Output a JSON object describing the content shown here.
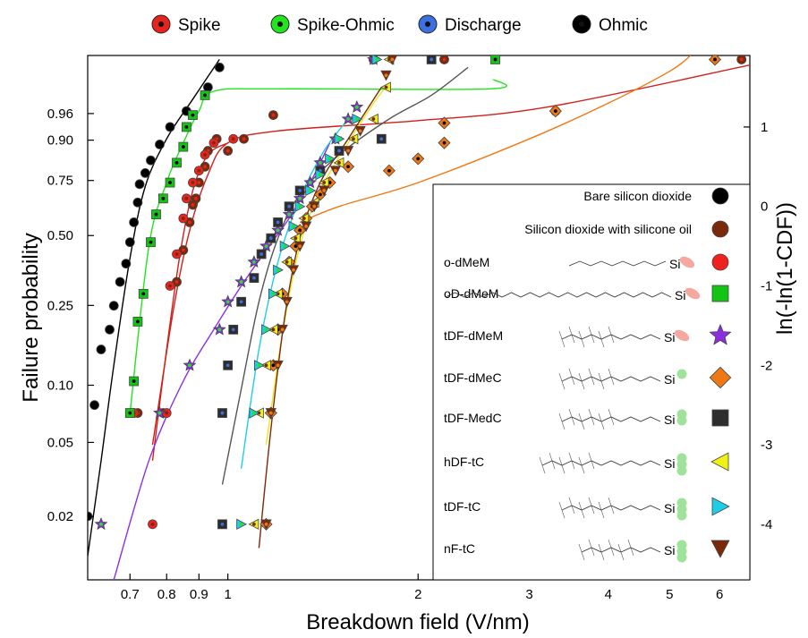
{
  "chart_data": {
    "type": "scatter",
    "xlabel": "Breakdown field (V/nm)",
    "ylabel": "Failure probability",
    "y2label": "ln(-ln(1-CDF))",
    "x_scale": "log",
    "x_ticks": [
      0.7,
      0.8,
      0.9,
      1,
      2,
      3,
      4,
      5,
      6
    ],
    "x_range": [
      0.6,
      6.7
    ],
    "y_range_weibull": [
      -4.7,
      1.9
    ],
    "y_ticks_prob": [
      "0.96",
      "0.90",
      "0.75",
      "0.50",
      "0.25",
      "0.10",
      "0.05",
      "0.02"
    ],
    "y_ticks_prob_values": [
      0.96,
      0.9,
      0.75,
      0.5,
      0.25,
      0.1,
      0.05,
      0.02
    ],
    "y2_ticks": [
      "1",
      "0",
      "-1",
      "-2",
      "-3",
      "-4"
    ],
    "y2_ticks_values": [
      1,
      0,
      -1,
      -2,
      -3,
      -4
    ],
    "top_legend": [
      {
        "label": "Spike",
        "color": "#e8231f"
      },
      {
        "label": "Spike-Ohmic",
        "color": "#22e51f"
      },
      {
        "label": "Discharge",
        "color": "#3c6fe0"
      },
      {
        "label": "Ohmic",
        "color": "#000000"
      }
    ],
    "inset_legend": [
      {
        "label": "Bare silicon dioxide",
        "marker": "circle",
        "color": "#000000",
        "molecule": false
      },
      {
        "label": "Silicon dioxide with silicone oil",
        "marker": "circle",
        "color": "#7a2a0a",
        "molecule": false
      },
      {
        "label": "o-dMeM",
        "marker": "circle",
        "color": "#f0201c",
        "molecule": true,
        "head": "methoxy",
        "chain": "alkyl8"
      },
      {
        "label": "oD-dMeM",
        "marker": "square",
        "color": "#14c414",
        "molecule": true,
        "head": "methoxy",
        "chain": "alkyl18"
      },
      {
        "label": "tDF-dMeM",
        "marker": "star",
        "color": "#8c2ee0",
        "molecule": true,
        "head": "methoxy",
        "chain": "fluoro"
      },
      {
        "label": "tDF-dMeC",
        "marker": "diamond",
        "color": "#f07814",
        "molecule": true,
        "head": "chloro1",
        "chain": "fluoro"
      },
      {
        "label": "tDF-MedC",
        "marker": "square",
        "color": "#2d2d2d",
        "molecule": true,
        "head": "chloro2",
        "chain": "fluoro"
      },
      {
        "label": "hDF-tC",
        "marker": "triangle-left",
        "color": "#f0f014",
        "molecule": true,
        "head": "chloro3",
        "chain": "fluoro-long"
      },
      {
        "label": "tDF-tC",
        "marker": "triangle-right",
        "color": "#1ecde6",
        "molecule": true,
        "head": "chloro3",
        "chain": "fluoro"
      },
      {
        "label": "nF-tC",
        "marker": "triangle-down",
        "color": "#7a2a0a",
        "molecule": true,
        "head": "chloro3",
        "chain": "fluoro-short"
      }
    ],
    "series": [
      {
        "name": "Bare silicon dioxide",
        "marker": "circle",
        "fill": "#000000",
        "center": null,
        "points": [
          [
            0.6,
            -3.9
          ],
          [
            0.615,
            -2.5
          ],
          [
            0.63,
            -1.8
          ],
          [
            0.65,
            -1.55
          ],
          [
            0.66,
            -1.25
          ],
          [
            0.675,
            -0.95
          ],
          [
            0.69,
            -0.72
          ],
          [
            0.7,
            -0.45
          ],
          [
            0.71,
            -0.2
          ],
          [
            0.72,
            0.05
          ],
          [
            0.725,
            0.28
          ],
          [
            0.74,
            0.42
          ],
          [
            0.755,
            0.58
          ],
          [
            0.78,
            0.78
          ],
          [
            0.81,
            1.0
          ],
          [
            0.86,
            1.2
          ],
          [
            0.93,
            1.5
          ],
          [
            0.97,
            1.75
          ]
        ],
        "fit": [
          [
            0.6,
            -4.4
          ],
          [
            0.63,
            -3.2
          ],
          [
            0.66,
            -2.0
          ],
          [
            0.7,
            -0.65
          ],
          [
            0.74,
            0.25
          ],
          [
            0.8,
            0.85
          ],
          [
            0.88,
            1.35
          ],
          [
            0.97,
            1.85
          ]
        ],
        "fit_color": "#000000"
      },
      {
        "name": "Silicon dioxide with silicone oil",
        "marker": "circle",
        "fill": "#7a2a0a",
        "center": "#e8231f",
        "points": [
          [
            0.72,
            -2.6
          ],
          [
            0.79,
            -2.6
          ],
          [
            0.83,
            -0.95
          ],
          [
            0.85,
            -0.55
          ],
          [
            0.87,
            -0.2
          ],
          [
            0.88,
            0.02
          ],
          [
            0.89,
            0.1
          ],
          [
            0.9,
            0.3
          ],
          [
            0.92,
            0.5
          ],
          [
            0.93,
            0.7
          ],
          [
            0.96,
            0.85
          ],
          [
            1.0,
            0.7
          ],
          [
            1.06,
            0.85
          ],
          [
            1.18,
            1.15
          ],
          [
            1.7,
            1.85
          ],
          [
            2.2,
            1.85
          ],
          [
            3.3,
            1.2
          ],
          [
            6.5,
            1.85
          ]
        ],
        "fit": [
          [
            0.76,
            -3.0
          ],
          [
            0.82,
            -1.3
          ],
          [
            0.87,
            -0.3
          ],
          [
            0.93,
            0.4
          ],
          [
            1.0,
            0.8
          ],
          [
            1.2,
            0.95
          ],
          [
            2.0,
            1.08
          ],
          [
            3.2,
            1.25
          ],
          [
            6.7,
            1.78
          ]
        ],
        "fit_color": "#d0201c"
      },
      {
        "name": "o-dMeM",
        "marker": "circle",
        "fill": "#f0201c",
        "center": "#7a2a0a",
        "points": [
          [
            0.71,
            -2.6
          ],
          [
            0.76,
            -4.0
          ],
          [
            0.8,
            -2.6
          ],
          [
            0.81,
            -1.0
          ],
          [
            0.83,
            -0.6
          ],
          [
            0.85,
            -0.15
          ],
          [
            0.86,
            0.1
          ],
          [
            0.88,
            0.3
          ],
          [
            0.9,
            0.45
          ],
          [
            0.92,
            0.65
          ],
          [
            0.95,
            0.8
          ],
          [
            1.02,
            0.85
          ]
        ],
        "fit": [
          [
            0.76,
            -3.2
          ],
          [
            0.8,
            -1.8
          ],
          [
            0.84,
            -0.6
          ],
          [
            0.88,
            0.2
          ],
          [
            0.93,
            0.65
          ],
          [
            1.0,
            0.8
          ]
        ],
        "fit_color": "#d0201c"
      },
      {
        "name": "oD-dMeM",
        "marker": "square",
        "fill": "#14c414",
        "center": "#000000",
        "points": [
          [
            0.7,
            -2.6
          ],
          [
            0.71,
            -2.2
          ],
          [
            0.72,
            -1.45
          ],
          [
            0.735,
            -1.1
          ],
          [
            0.755,
            -0.45
          ],
          [
            0.77,
            -0.1
          ],
          [
            0.79,
            0.1
          ],
          [
            0.81,
            0.3
          ],
          [
            0.83,
            0.55
          ],
          [
            0.85,
            0.75
          ],
          [
            0.86,
            1.0
          ],
          [
            0.88,
            1.15
          ],
          [
            0.92,
            1.4
          ],
          [
            2.65,
            1.85
          ]
        ],
        "fit": [
          [
            0.7,
            -2.6
          ],
          [
            0.75,
            -0.5
          ],
          [
            0.8,
            0.3
          ],
          [
            0.85,
            0.8
          ],
          [
            0.9,
            1.2
          ],
          [
            0.95,
            1.45
          ],
          [
            1.2,
            1.48
          ],
          [
            2.6,
            1.48
          ],
          [
            2.63,
            1.6
          ]
        ],
        "fit_color": "#22e51f"
      },
      {
        "name": "tDF-dMeM",
        "marker": "star",
        "fill": "#8c2ee0",
        "center": "#22e51f",
        "points": [
          [
            0.63,
            -4.0
          ],
          [
            0.78,
            -2.6
          ],
          [
            0.87,
            -2.0
          ],
          [
            0.97,
            -1.55
          ],
          [
            1.0,
            -1.2
          ],
          [
            1.05,
            -0.95
          ],
          [
            1.1,
            -0.7
          ],
          [
            1.15,
            -0.5
          ],
          [
            1.2,
            -0.3
          ],
          [
            1.25,
            -0.1
          ],
          [
            1.3,
            0.1
          ],
          [
            1.35,
            0.3
          ],
          [
            1.4,
            0.55
          ],
          [
            1.48,
            0.85
          ],
          [
            1.55,
            1.1
          ],
          [
            1.6,
            1.25
          ],
          [
            1.7,
            1.85
          ]
        ],
        "fit": [
          [
            0.66,
            -4.7
          ],
          [
            0.75,
            -3.2
          ],
          [
            0.85,
            -2.2
          ],
          [
            0.95,
            -1.55
          ],
          [
            1.05,
            -1.0
          ],
          [
            1.15,
            -0.55
          ],
          [
            1.25,
            -0.15
          ],
          [
            1.35,
            0.3
          ],
          [
            1.45,
            0.8
          ]
        ],
        "fit_color": "#8c2ee0"
      },
      {
        "name": "tDF-dMeC",
        "marker": "diamond",
        "fill": "#f07814",
        "center": "#000000",
        "points": [
          [
            1.15,
            -4.0
          ],
          [
            1.17,
            -2.6
          ],
          [
            1.18,
            -2.0
          ],
          [
            1.2,
            -1.55
          ],
          [
            1.22,
            -1.1
          ],
          [
            1.25,
            -0.7
          ],
          [
            1.28,
            -0.5
          ],
          [
            1.3,
            -0.3
          ],
          [
            1.33,
            -0.15
          ],
          [
            1.36,
            0.0
          ],
          [
            1.4,
            0.15
          ],
          [
            1.45,
            0.3
          ],
          [
            1.55,
            0.5
          ],
          [
            1.8,
            0.45
          ],
          [
            2.0,
            0.6
          ],
          [
            2.2,
            0.8
          ],
          [
            2.2,
            1.05
          ],
          [
            3.3,
            1.2
          ],
          [
            5.9,
            1.85
          ]
        ],
        "fit": [
          [
            1.3,
            -0.2
          ],
          [
            1.5,
            0.0
          ],
          [
            2.0,
            0.3
          ],
          [
            3.0,
            0.85
          ],
          [
            4.0,
            1.3
          ],
          [
            5.0,
            1.7
          ],
          [
            5.4,
            1.9
          ]
        ],
        "fit_color": "#f07814"
      },
      {
        "name": "tDF-MedC",
        "marker": "square",
        "fill": "#2d2d2d",
        "center": "#3c6fe0",
        "points": [
          [
            0.98,
            -4.0
          ],
          [
            0.98,
            -2.6
          ],
          [
            1.0,
            -2.0
          ],
          [
            1.02,
            -1.55
          ],
          [
            1.05,
            -1.2
          ],
          [
            1.1,
            -0.9
          ],
          [
            1.13,
            -0.6
          ],
          [
            1.17,
            -0.4
          ],
          [
            1.2,
            -0.2
          ],
          [
            1.25,
            0.0
          ],
          [
            1.3,
            0.2
          ],
          [
            1.4,
            0.45
          ],
          [
            1.5,
            0.7
          ],
          [
            1.75,
            0.85
          ],
          [
            2.1,
            1.85
          ]
        ],
        "fit": [
          [
            0.98,
            -3.5
          ],
          [
            1.05,
            -2.3
          ],
          [
            1.12,
            -1.2
          ],
          [
            1.2,
            -0.4
          ],
          [
            1.3,
            0.15
          ],
          [
            1.5,
            0.65
          ],
          [
            1.8,
            1.1
          ],
          [
            2.1,
            1.4
          ],
          [
            2.4,
            1.75
          ]
        ],
        "fit_color": "#555555"
      },
      {
        "name": "hDF-tC",
        "marker": "triangle-left",
        "fill": "#f0f014",
        "center": "#7a2a0a",
        "points": [
          [
            1.1,
            -4.0
          ],
          [
            1.12,
            -2.6
          ],
          [
            1.15,
            -2.0
          ],
          [
            1.18,
            -1.55
          ],
          [
            1.2,
            -1.1
          ],
          [
            1.24,
            -0.7
          ],
          [
            1.28,
            -0.4
          ],
          [
            1.32,
            -0.15
          ],
          [
            1.37,
            0.05
          ],
          [
            1.42,
            0.3
          ],
          [
            1.5,
            0.55
          ],
          [
            1.58,
            0.85
          ],
          [
            1.7,
            1.1
          ],
          [
            1.78,
            1.5
          ],
          [
            1.8,
            1.85
          ]
        ],
        "fit": [
          [
            1.15,
            -3.0
          ],
          [
            1.22,
            -1.6
          ],
          [
            1.3,
            -0.5
          ],
          [
            1.4,
            0.2
          ],
          [
            1.55,
            0.8
          ],
          [
            1.7,
            1.3
          ],
          [
            1.8,
            1.55
          ]
        ],
        "fit_color": "#e8e820"
      },
      {
        "name": "tDF-tC",
        "marker": "triangle-right",
        "fill": "#1ecde6",
        "center": "#22e51f",
        "points": [
          [
            1.05,
            -4.0
          ],
          [
            1.1,
            -2.6
          ],
          [
            1.12,
            -2.0
          ],
          [
            1.15,
            -1.55
          ],
          [
            1.18,
            -1.1
          ],
          [
            1.2,
            -0.8
          ],
          [
            1.23,
            -0.5
          ],
          [
            1.27,
            -0.25
          ],
          [
            1.3,
            0.0
          ],
          [
            1.35,
            0.2
          ],
          [
            1.4,
            0.4
          ],
          [
            1.45,
            0.6
          ],
          [
            1.5,
            0.85
          ],
          [
            1.6,
            1.1
          ],
          [
            1.72,
            1.85
          ]
        ],
        "fit": [
          [
            1.05,
            -3.3
          ],
          [
            1.12,
            -1.8
          ],
          [
            1.2,
            -0.7
          ],
          [
            1.3,
            0.1
          ],
          [
            1.42,
            0.7
          ],
          [
            1.55,
            1.1
          ]
        ],
        "fit_color": "#1ecde6"
      },
      {
        "name": "nF-tC",
        "marker": "triangle-down",
        "fill": "#7a2a0a",
        "center": "#f07814",
        "points": [
          [
            1.15,
            -4.0
          ],
          [
            1.17,
            -2.6
          ],
          [
            1.2,
            -2.0
          ],
          [
            1.22,
            -1.55
          ],
          [
            1.24,
            -1.2
          ],
          [
            1.27,
            -0.8
          ],
          [
            1.3,
            -0.5
          ],
          [
            1.33,
            -0.25
          ],
          [
            1.37,
            0.0
          ],
          [
            1.42,
            0.2
          ],
          [
            1.48,
            0.45
          ],
          [
            1.55,
            0.7
          ],
          [
            1.62,
            0.95
          ],
          [
            1.78,
            1.65
          ],
          [
            1.82,
            1.85
          ]
        ],
        "fit": [
          [
            1.12,
            -4.3
          ],
          [
            1.17,
            -2.8
          ],
          [
            1.23,
            -1.4
          ],
          [
            1.3,
            -0.4
          ],
          [
            1.4,
            0.3
          ],
          [
            1.55,
            0.85
          ],
          [
            1.75,
            1.5
          ]
        ],
        "fit_color": "#7a2a0a"
      }
    ]
  }
}
